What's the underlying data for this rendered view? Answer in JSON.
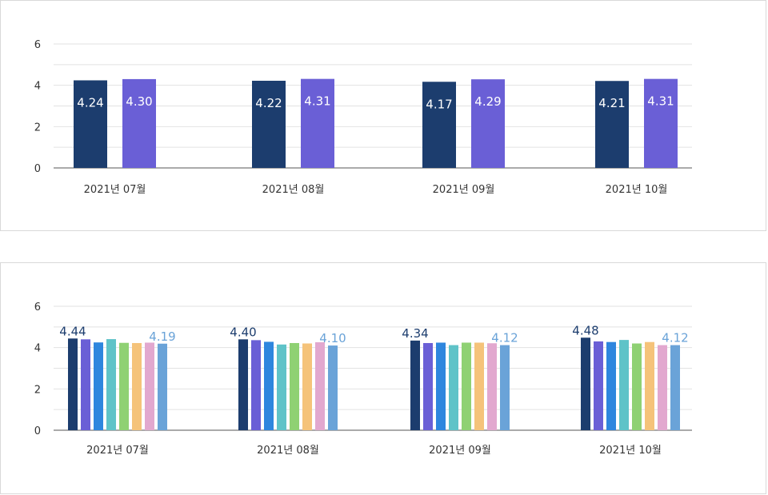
{
  "colors": {
    "grid": "#e2e2e2",
    "axis": "#555555",
    "tick_text": "#333333"
  },
  "chart_data": [
    {
      "type": "bar",
      "categories": [
        "2021년 07월",
        "2021년 08월",
        "2021년 09월",
        "2021년 10월"
      ],
      "ylim": [
        0,
        6
      ],
      "yticks": [
        "0",
        "2",
        "4",
        "6"
      ],
      "grid": true,
      "data_labels": "inside",
      "series": [
        {
          "color": "#1c3d6e",
          "values": [
            4.24,
            4.22,
            4.17,
            4.21
          ],
          "labels": [
            "4.24",
            "4.22",
            "4.17",
            "4.21"
          ]
        },
        {
          "color": "#6a5fd6",
          "values": [
            4.3,
            4.31,
            4.29,
            4.31
          ],
          "labels": [
            "4.30",
            "4.31",
            "4.29",
            "4.31"
          ]
        }
      ]
    },
    {
      "type": "bar",
      "categories": [
        "2021년 07월",
        "2021년 08월",
        "2021년 09월",
        "2021년 10월"
      ],
      "ylim": [
        0,
        6
      ],
      "yticks": [
        "0",
        "2",
        "4",
        "6"
      ],
      "grid": true,
      "data_labels": "above",
      "series": [
        {
          "color": "#1c3d6e",
          "values": [
            4.44,
            4.4,
            4.34,
            4.48
          ],
          "labels": [
            "4.44",
            "4.40",
            "4.34",
            "4.48"
          ]
        },
        {
          "color": "#6a5fd6",
          "values": [
            4.4,
            4.36,
            4.22,
            4.3
          ]
        },
        {
          "color": "#2e86de",
          "values": [
            4.25,
            4.28,
            4.24,
            4.27
          ]
        },
        {
          "color": "#5fc3c8",
          "values": [
            4.41,
            4.15,
            4.12,
            4.37
          ]
        },
        {
          "color": "#8fd173",
          "values": [
            4.23,
            4.22,
            4.24,
            4.2
          ]
        },
        {
          "color": "#f5c37a",
          "values": [
            4.22,
            4.2,
            4.24,
            4.27
          ]
        },
        {
          "color": "#e2a8cf",
          "values": [
            4.24,
            4.26,
            4.21,
            4.12
          ]
        },
        {
          "color": "#6aa3d8",
          "values": [
            4.19,
            4.1,
            4.12,
            4.12
          ],
          "labels": [
            "4.19",
            "4.10",
            "4.12",
            "4.12"
          ]
        }
      ]
    }
  ]
}
